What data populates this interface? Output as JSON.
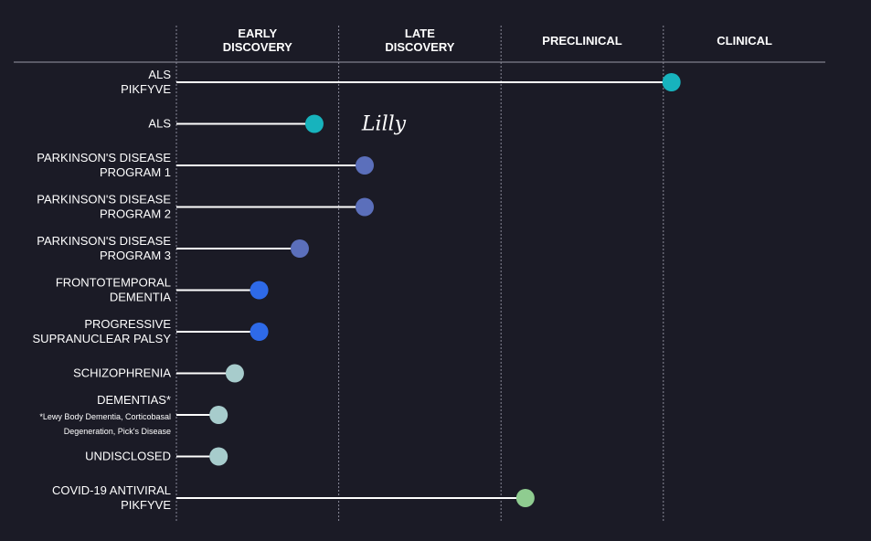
{
  "chart_data": {
    "type": "bar",
    "stages": [
      "EARLY DISCOVERY",
      "LATE DISCOVERY",
      "PRECLINICAL",
      "CLINICAL"
    ],
    "stage_label_lines": [
      [
        "EARLY",
        "DISCOVERY"
      ],
      [
        "LATE",
        "DISCOVERY"
      ],
      [
        "PRECLINICAL"
      ],
      [
        "CLINICAL"
      ]
    ],
    "xlim": [
      0,
      4
    ],
    "grid": true,
    "programs": [
      {
        "label": [
          "ALS",
          "PIKFYVE"
        ],
        "value": 3.05,
        "color": "#17b3bd"
      },
      {
        "label": [
          "ALS"
        ],
        "value": 0.85,
        "color": "#17b3bd",
        "partner": "Lilly"
      },
      {
        "label": [
          "PARKINSON'S DISEASE",
          "PROGRAM 1"
        ],
        "value": 1.16,
        "color": "#5b6fbb"
      },
      {
        "label": [
          "PARKINSON'S DISEASE",
          "PROGRAM 2"
        ],
        "value": 1.16,
        "color": "#5b6fbb"
      },
      {
        "label": [
          "PARKINSON'S DISEASE",
          "PROGRAM 3"
        ],
        "value": 0.76,
        "color": "#5b6fbb"
      },
      {
        "label": [
          "FRONTOTEMPORAL",
          "DEMENTIA"
        ],
        "value": 0.51,
        "color": "#2e6ae8"
      },
      {
        "label": [
          "PROGRESSIVE",
          "SUPRANUCLEAR PALSY"
        ],
        "value": 0.51,
        "color": "#2e6ae8"
      },
      {
        "label": [
          "SCHIZOPHRENIA"
        ],
        "value": 0.36,
        "color": "#a7cccc"
      },
      {
        "label": [
          "DEMENTIAS*"
        ],
        "note": [
          "*Lewy Body Dementia, Corticobasal",
          "Degeneration, Pick's Disease"
        ],
        "value": 0.26,
        "color": "#a7cccc"
      },
      {
        "label": [
          "UNDISCLOSED"
        ],
        "value": 0.26,
        "color": "#a7cccc"
      },
      {
        "label": [
          "COVID-19 ANTIVIRAL",
          "PIKFYVE"
        ],
        "value": 2.15,
        "color": "#8fcc90"
      }
    ]
  },
  "colors": {
    "background": "#1b1b26",
    "text": "#ffffff",
    "bar": "#ffffff",
    "gridline": "#8a8a99",
    "header_rule": "#9a9aa6"
  }
}
